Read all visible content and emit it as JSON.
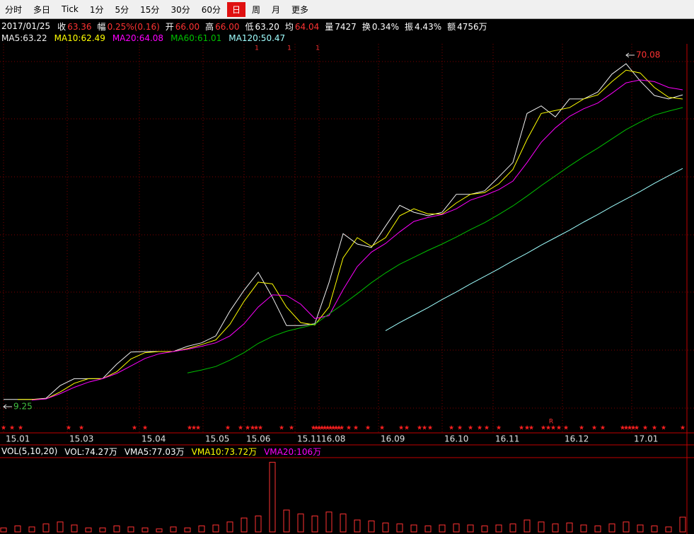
{
  "toolbar": {
    "items": [
      "分时",
      "多日",
      "Tick",
      "1分",
      "5分",
      "15分",
      "30分",
      "60分",
      "日",
      "周",
      "月",
      "更多"
    ],
    "active": 8
  },
  "quote_bar": {
    "date": "2017/01/25",
    "fields": [
      {
        "label": "收",
        "value": "63.36",
        "color": "#ff3232"
      },
      {
        "label": "幅",
        "value": "0.25%(0.16)",
        "color": "#ff3232"
      },
      {
        "label": "开",
        "value": "66.00",
        "color": "#ff3232"
      },
      {
        "label": "高",
        "value": "66.00",
        "color": "#ff3232"
      },
      {
        "label": "低",
        "value": "63.20",
        "color": "#ffffff"
      },
      {
        "label": "均",
        "value": "64.04",
        "color": "#ff3232"
      },
      {
        "label": "量",
        "value": "7427",
        "color": "#ffffff"
      },
      {
        "label": "换",
        "value": "0.34%",
        "color": "#ffffff"
      },
      {
        "label": "振",
        "value": "4.43%",
        "color": "#ffffff"
      },
      {
        "label": "额",
        "value": "4756万",
        "color": "#ffffff"
      }
    ]
  },
  "chart_data": [
    {
      "type": "line",
      "x": [
        0,
        10,
        20,
        30,
        40,
        50,
        60,
        70,
        80,
        90,
        100,
        110,
        120,
        130,
        140,
        150,
        160,
        170,
        180,
        190,
        200,
        210,
        220,
        230,
        240,
        250,
        260,
        270,
        280,
        290,
        300,
        310,
        320,
        330,
        340,
        350,
        360,
        370,
        380,
        390,
        400,
        410,
        420,
        430,
        440,
        450,
        460,
        470,
        480
      ],
      "xlim": [
        -2,
        483
      ],
      "ylim": [
        4.72,
        72.04
      ],
      "xticks": [
        {
          "value": 0,
          "label": "15.01"
        },
        {
          "value": 45,
          "label": "15.03"
        },
        {
          "value": 96,
          "label": "15.04"
        },
        {
          "value": 141,
          "label": "15.05"
        },
        {
          "value": 170,
          "label": "15.06"
        },
        {
          "value": 206,
          "label": "15.11"
        },
        {
          "value": 223,
          "label": "16.08"
        },
        {
          "value": 265,
          "label": "16.09"
        },
        {
          "value": 310,
          "label": "16.10"
        },
        {
          "value": 346,
          "label": "16.11"
        },
        {
          "value": 395,
          "label": "16.12"
        },
        {
          "value": 444,
          "label": "17.01"
        }
      ],
      "series": [
        {
          "name": "MA5:63.22",
          "color": "#f0f0f0",
          "values": [
            10.5,
            10.5,
            10.5,
            10.7,
            12.9,
            14.1,
            14.1,
            14.1,
            16.6,
            18.7,
            18.8,
            18.8,
            18.8,
            19.7,
            20.3,
            21.5,
            25.8,
            29.4,
            32.5,
            28.2,
            23.3,
            23.3,
            23.6,
            30.7,
            39.2,
            37.4,
            36.8,
            40.5,
            44.1,
            42.9,
            42.3,
            42.9,
            46.0,
            46.0,
            46.6,
            49.0,
            51.5,
            60.0,
            61.3,
            59.4,
            62.5,
            62.5,
            63.7,
            66.8,
            68.6,
            65.6,
            63.1,
            62.5,
            63.22
          ]
        },
        {
          "name": "MA10:62.49",
          "color": "#ffff00",
          "values": [
            null,
            10.5,
            10.5,
            10.6,
            11.8,
            13.3,
            14.1,
            14.1,
            15.3,
            17.5,
            18.6,
            18.8,
            18.8,
            19.3,
            20.0,
            20.8,
            23.5,
            27.5,
            30.8,
            30.5,
            26.5,
            23.8,
            23.4,
            26.5,
            35.0,
            38.5,
            37.0,
            38.5,
            42.3,
            43.5,
            42.6,
            42.6,
            44.5,
            46.0,
            46.3,
            47.8,
            50.3,
            55.5,
            60.0,
            60.5,
            61.0,
            62.5,
            63.2,
            65.5,
            67.5,
            67.0,
            64.5,
            62.8,
            62.49
          ]
        },
        {
          "name": "MA20:64.08",
          "color": "#ff00ff",
          "values": [
            null,
            null,
            10.4,
            10.6,
            11.5,
            12.6,
            13.5,
            14.1,
            15.0,
            16.3,
            17.6,
            18.4,
            18.8,
            19.2,
            19.7,
            20.3,
            21.5,
            23.6,
            26.5,
            28.6,
            28.5,
            27.0,
            24.5,
            25.0,
            29.5,
            33.5,
            36.0,
            37.5,
            39.5,
            41.3,
            42.0,
            42.5,
            43.5,
            45.0,
            45.8,
            46.8,
            48.3,
            51.5,
            55.0,
            57.5,
            59.5,
            60.8,
            61.8,
            63.5,
            65.3,
            65.8,
            65.5,
            64.5,
            64.08
          ]
        },
        {
          "name": "MA60:61.01",
          "color": "#00c000",
          "values": [
            null,
            null,
            null,
            null,
            null,
            null,
            null,
            null,
            null,
            null,
            null,
            null,
            null,
            15.1,
            15.6,
            16.2,
            17.3,
            18.6,
            20.2,
            21.4,
            22.3,
            22.9,
            23.5,
            25.3,
            27.0,
            28.8,
            30.7,
            32.4,
            33.9,
            35.1,
            36.3,
            37.4,
            38.6,
            39.9,
            41.1,
            42.5,
            44.0,
            45.7,
            47.5,
            49.2,
            50.9,
            52.5,
            54.0,
            55.6,
            57.2,
            58.5,
            59.7,
            60.4,
            61.01
          ]
        },
        {
          "name": "MA120:50.47",
          "color": "#a0ffff",
          "values": [
            null,
            null,
            null,
            null,
            null,
            null,
            null,
            null,
            null,
            null,
            null,
            null,
            null,
            null,
            null,
            null,
            null,
            null,
            null,
            null,
            null,
            null,
            null,
            null,
            null,
            null,
            null,
            22.4,
            23.8,
            25.1,
            26.4,
            27.8,
            29.1,
            30.5,
            31.8,
            33.1,
            34.5,
            35.8,
            37.2,
            38.5,
            39.8,
            41.2,
            42.5,
            43.9,
            45.2,
            46.5,
            47.9,
            49.2,
            50.47
          ]
        }
      ],
      "annotations": [
        {
          "value": 70.08,
          "x": 440,
          "color": "#ff3232"
        },
        {
          "value": 9.25,
          "x": 0,
          "color": "#40c040"
        }
      ],
      "markers": [
        {
          "text": "1",
          "x": 179
        },
        {
          "text": "1",
          "x": 202
        },
        {
          "text": "1",
          "x": 222
        },
        {
          "text": "R",
          "x": 387
        }
      ]
    },
    {
      "type": "bar",
      "name": "VOL(5,10,20)",
      "color": "#ff3232",
      "x": [
        0,
        10,
        20,
        30,
        40,
        50,
        60,
        70,
        80,
        90,
        100,
        110,
        120,
        130,
        140,
        150,
        160,
        170,
        180,
        190,
        200,
        210,
        220,
        230,
        240,
        250,
        260,
        270,
        280,
        290,
        300,
        310,
        320,
        330,
        340,
        350,
        360,
        370,
        380,
        390,
        400,
        410,
        420,
        430,
        440,
        450,
        460,
        470,
        480
      ],
      "xlim": [
        -2,
        483
      ],
      "ylim": [
        0,
        370
      ],
      "values": [
        20,
        30,
        25,
        40,
        50,
        35,
        20,
        20,
        30,
        25,
        20,
        15,
        25,
        20,
        30,
        35,
        50,
        70,
        80,
        350,
        110,
        90,
        80,
        100,
        90,
        60,
        55,
        45,
        40,
        35,
        30,
        35,
        40,
        35,
        30,
        35,
        40,
        60,
        50,
        40,
        45,
        35,
        30,
        40,
        50,
        35,
        30,
        25,
        74.27
      ],
      "labels": [
        {
          "text": "VOL:74.27万",
          "color": "#ffffff"
        },
        {
          "text": "VMA5:77.03万",
          "color": "#ffffff"
        },
        {
          "text": "VMA10:73.72万",
          "color": "#ffff00"
        },
        {
          "text": "VMA20:106万",
          "color": "#ff00ff"
        }
      ]
    }
  ]
}
